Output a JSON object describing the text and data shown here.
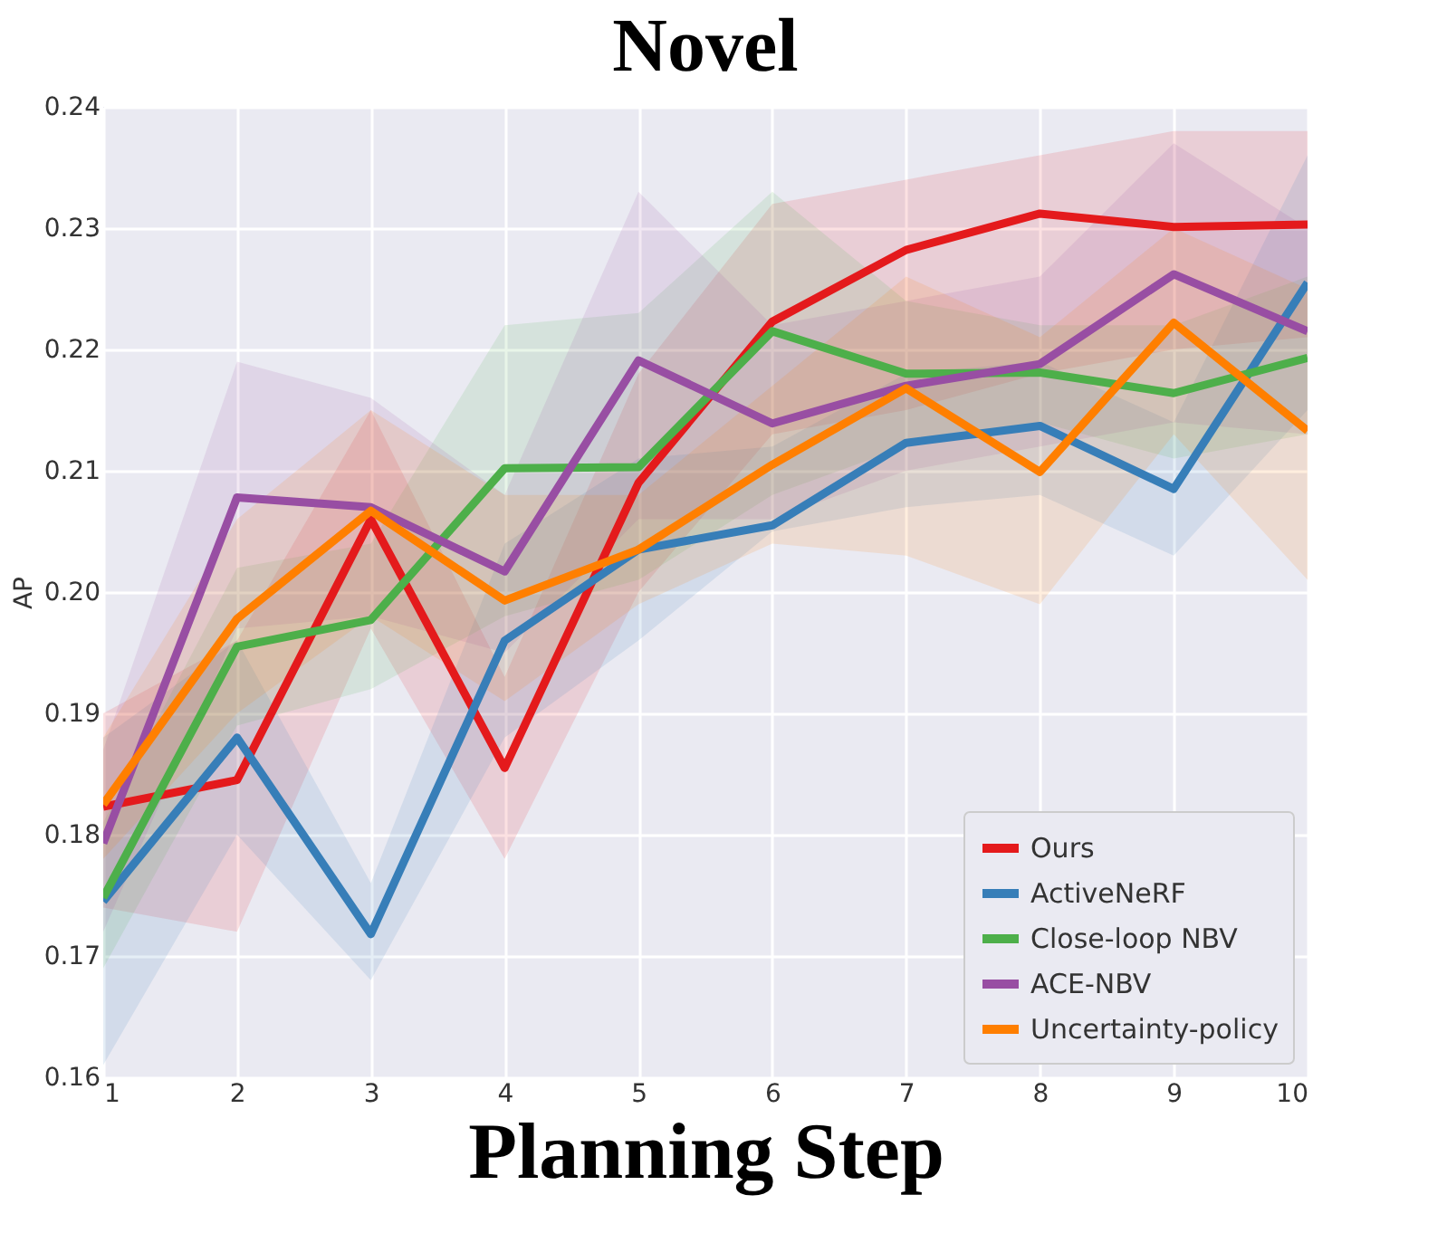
{
  "chart_data": {
    "type": "line",
    "title": "Novel",
    "xlabel": "Planning Step",
    "ylabel": "AP",
    "x": [
      1,
      2,
      3,
      4,
      5,
      6,
      7,
      8,
      9,
      10
    ],
    "xlim": [
      1,
      10
    ],
    "xticks": [
      1,
      2,
      3,
      4,
      5,
      6,
      7,
      8,
      9,
      10
    ],
    "ylim": [
      0.16,
      0.24
    ],
    "yticks": [
      0.16,
      0.17,
      0.18,
      0.19,
      {
        "value": 0.2,
        "label": "0.20"
      },
      0.21,
      0.22,
      0.23,
      0.24
    ],
    "grid": true,
    "legend": "bottom right",
    "series": [
      {
        "name": "Ours",
        "color": "#e41a1c",
        "values": [
          0.1823,
          0.1845,
          0.206,
          0.1855,
          0.209,
          0.2223,
          0.2282,
          0.2312,
          0.2301,
          0.2303
        ],
        "lower": [
          0.174,
          0.172,
          0.197,
          0.178,
          0.2,
          0.213,
          0.215,
          0.218,
          0.22,
          0.221
        ],
        "upper": [
          0.19,
          0.196,
          0.215,
          0.193,
          0.218,
          0.232,
          0.234,
          0.236,
          0.238,
          0.238
        ]
      },
      {
        "name": "ActiveNeRF",
        "color": "#377eb8",
        "values": [
          0.1745,
          0.188,
          0.1718,
          0.196,
          0.2035,
          0.2055,
          0.2123,
          0.2137,
          0.2085,
          0.2255
        ],
        "lower": [
          0.161,
          0.18,
          0.168,
          0.188,
          0.196,
          0.205,
          0.207,
          0.208,
          0.203,
          0.215
        ],
        "upper": [
          0.188,
          0.196,
          0.176,
          0.204,
          0.211,
          0.212,
          0.218,
          0.219,
          0.214,
          0.236
        ]
      },
      {
        "name": "Close-loop NBV",
        "color": "#4daf4a",
        "values": [
          0.1748,
          0.1955,
          0.1977,
          0.2102,
          0.2103,
          0.2215,
          0.218,
          0.2181,
          0.2164,
          0.2193
        ],
        "lower": [
          0.169,
          0.189,
          0.192,
          0.198,
          0.201,
          0.208,
          0.212,
          0.214,
          0.211,
          0.213
        ],
        "upper": [
          0.181,
          0.202,
          0.204,
          0.222,
          0.223,
          0.233,
          0.224,
          0.222,
          0.222,
          0.226
        ]
      },
      {
        "name": "ACE-NBV",
        "color": "#984ea3",
        "values": [
          0.1793,
          0.2078,
          0.207,
          0.2017,
          0.2191,
          0.2139,
          0.217,
          0.2188,
          0.2262,
          0.2215
        ],
        "lower": [
          0.172,
          0.197,
          0.198,
          0.195,
          0.206,
          0.206,
          0.21,
          0.212,
          0.214,
          0.213
        ],
        "upper": [
          0.187,
          0.219,
          0.216,
          0.208,
          0.233,
          0.222,
          0.224,
          0.226,
          0.237,
          0.23
        ]
      },
      {
        "name": "Uncertainty-policy",
        "color": "#ff7f00",
        "values": [
          0.1825,
          0.1978,
          0.2067,
          0.1993,
          0.2035,
          0.2105,
          0.2168,
          0.2099,
          0.2222,
          0.2133
        ],
        "lower": [
          0.178,
          0.19,
          0.198,
          0.191,
          0.199,
          0.204,
          0.203,
          0.199,
          0.213,
          0.201
        ],
        "upper": [
          0.188,
          0.206,
          0.215,
          0.208,
          0.208,
          0.217,
          0.226,
          0.221,
          0.23,
          0.225
        ]
      }
    ]
  }
}
